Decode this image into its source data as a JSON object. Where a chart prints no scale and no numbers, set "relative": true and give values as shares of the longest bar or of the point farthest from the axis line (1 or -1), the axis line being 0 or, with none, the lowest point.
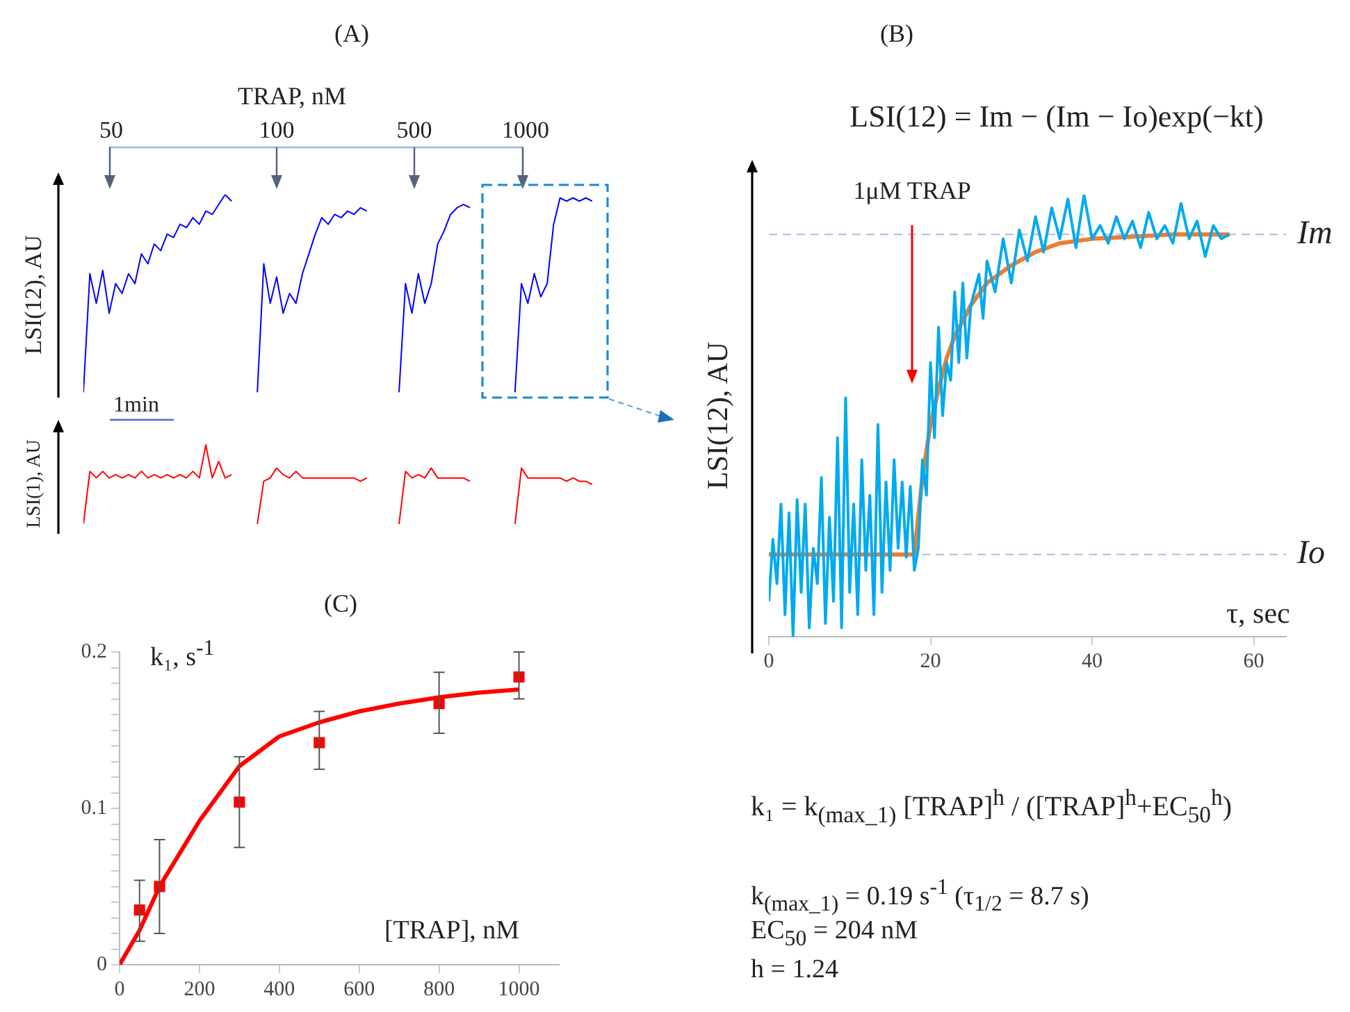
{
  "chart_data": [
    {
      "type": "line",
      "title": "(A)",
      "ylabel": "LSI(12), AU",
      "relative": true,
      "tick_labels": false,
      "marker": "none",
      "annotations": [
        "TRAP, nM",
        "50",
        "100",
        "500",
        "1000",
        "1min",
        "LSI(1), AU"
      ],
      "categories": [
        null,
        null,
        null,
        null,
        null,
        null,
        null,
        null,
        null,
        null,
        null,
        null,
        null,
        null,
        null,
        null,
        null,
        null,
        null,
        null,
        null,
        null,
        null,
        null,
        null,
        null,
        null,
        null,
        null,
        null,
        null,
        null,
        null,
        null,
        null,
        null,
        null,
        null,
        null,
        null,
        null,
        null,
        null,
        null,
        null,
        null,
        null,
        null,
        null,
        null,
        null,
        null,
        null,
        null,
        null,
        null,
        null,
        null,
        null,
        null,
        null,
        null,
        null,
        null,
        null,
        null,
        null,
        null,
        null,
        null,
        null,
        null,
        null,
        null,
        null,
        null,
        null,
        null,
        null,
        null
      ],
      "series": [
        {
          "color": "#0000ff",
          "values": [
            0.4,
            0.76,
            0.67,
            0.77,
            0.64,
            0.73,
            0.7,
            0.76,
            0.73,
            0.82,
            0.79,
            0.85,
            0.83,
            0.88,
            0.87,
            0.91,
            0.9,
            0.93,
            0.91,
            0.95,
            0.94,
            0.97,
            1.0,
            0.98,
            null,
            null,
            null,
            null,
            null,
            null,
            null,
            null,
            null,
            null,
            null,
            null,
            null,
            null,
            null,
            null,
            null,
            null,
            null,
            null,
            null,
            null,
            null,
            null,
            null,
            null,
            null,
            null,
            null,
            null,
            null,
            null,
            null,
            null,
            null,
            null,
            null,
            null,
            null,
            null,
            null,
            null,
            null,
            null,
            null,
            null,
            null,
            null,
            null,
            null,
            null,
            null,
            null,
            null,
            null,
            null
          ]
        },
        {
          "color": "#0000ff",
          "values": [
            null,
            null,
            null,
            null,
            null,
            null,
            null,
            null,
            null,
            null,
            null,
            null,
            null,
            null,
            null,
            null,
            null,
            null,
            null,
            null,
            null,
            null,
            null,
            null,
            null,
            null,
            null,
            0.4,
            0.79,
            0.67,
            0.75,
            0.64,
            0.7,
            0.67,
            0.76,
            0.82,
            0.88,
            0.93,
            0.91,
            0.94,
            0.93,
            0.95,
            0.94,
            0.96,
            0.95,
            null,
            null,
            null,
            null,
            null,
            null,
            null,
            null,
            null,
            null,
            null,
            null,
            null,
            null,
            null,
            null,
            null,
            null,
            null,
            null,
            null,
            null,
            null,
            null,
            null,
            null,
            null,
            null,
            null,
            null,
            null,
            null,
            null,
            null,
            null
          ]
        },
        {
          "color": "#0000ff",
          "values": [
            null,
            null,
            null,
            null,
            null,
            null,
            null,
            null,
            null,
            null,
            null,
            null,
            null,
            null,
            null,
            null,
            null,
            null,
            null,
            null,
            null,
            null,
            null,
            null,
            null,
            null,
            null,
            null,
            null,
            null,
            null,
            null,
            null,
            null,
            null,
            null,
            null,
            null,
            null,
            null,
            null,
            null,
            null,
            null,
            null,
            null,
            null,
            null,
            null,
            0.4,
            0.73,
            0.64,
            0.76,
            0.67,
            0.73,
            0.85,
            0.89,
            0.94,
            0.96,
            0.97,
            0.96,
            null,
            null,
            null,
            null,
            null,
            null,
            null,
            null,
            null,
            null,
            null,
            null,
            null,
            null,
            null,
            null,
            null,
            null,
            null
          ]
        },
        {
          "color": "#0000ff",
          "values": [
            null,
            null,
            null,
            null,
            null,
            null,
            null,
            null,
            null,
            null,
            null,
            null,
            null,
            null,
            null,
            null,
            null,
            null,
            null,
            null,
            null,
            null,
            null,
            null,
            null,
            null,
            null,
            null,
            null,
            null,
            null,
            null,
            null,
            null,
            null,
            null,
            null,
            null,
            null,
            null,
            null,
            null,
            null,
            null,
            null,
            null,
            null,
            null,
            null,
            null,
            null,
            null,
            null,
            null,
            null,
            null,
            null,
            null,
            null,
            null,
            null,
            null,
            null,
            null,
            null,
            null,
            null,
            0.4,
            0.73,
            0.67,
            0.76,
            0.69,
            0.73,
            0.91,
            0.99,
            0.98,
            0.99,
            0.98,
            0.99,
            0.98
          ]
        },
        {
          "color": "#ff0000",
          "values": [
            0,
            0.16,
            0.14,
            0.16,
            0.14,
            0.15,
            0.14,
            0.15,
            0.14,
            0.16,
            0.14,
            0.15,
            0.14,
            0.15,
            0.14,
            0.15,
            0.14,
            0.16,
            0.14,
            0.24,
            0.14,
            0.19,
            0.14,
            0.15,
            null,
            null,
            null,
            null,
            null,
            null,
            null,
            null,
            null,
            null,
            null,
            null,
            null,
            null,
            null,
            null,
            null,
            null,
            null,
            null,
            null,
            null,
            null,
            null,
            null,
            null,
            null,
            null,
            null,
            null,
            null,
            null,
            null,
            null,
            null,
            null,
            null,
            null,
            null,
            null,
            null,
            null,
            null,
            null,
            null,
            null,
            null,
            null,
            null,
            null,
            null,
            null,
            null,
            null,
            null,
            null
          ]
        },
        {
          "color": "#ff0000",
          "values": [
            null,
            null,
            null,
            null,
            null,
            null,
            null,
            null,
            null,
            null,
            null,
            null,
            null,
            null,
            null,
            null,
            null,
            null,
            null,
            null,
            null,
            null,
            null,
            null,
            null,
            null,
            null,
            0,
            0.13,
            0.14,
            0.17,
            0.15,
            0.14,
            0.16,
            0.14,
            0.14,
            0.14,
            0.14,
            0.14,
            0.14,
            0.14,
            0.14,
            0.14,
            0.13,
            0.14,
            null,
            null,
            null,
            null,
            null,
            null,
            null,
            null,
            null,
            null,
            null,
            null,
            null,
            null,
            null,
            null,
            null,
            null,
            null,
            null,
            null,
            null,
            null,
            null,
            null,
            null,
            null,
            null,
            null,
            null,
            null,
            null,
            null,
            null,
            null
          ]
        },
        {
          "color": "#ff0000",
          "values": [
            null,
            null,
            null,
            null,
            null,
            null,
            null,
            null,
            null,
            null,
            null,
            null,
            null,
            null,
            null,
            null,
            null,
            null,
            null,
            null,
            null,
            null,
            null,
            null,
            null,
            null,
            null,
            null,
            null,
            null,
            null,
            null,
            null,
            null,
            null,
            null,
            null,
            null,
            null,
            null,
            null,
            null,
            null,
            null,
            null,
            null,
            null,
            null,
            null,
            0,
            0.16,
            0.14,
            0.15,
            0.14,
            0.17,
            0.14,
            0.14,
            0.14,
            0.14,
            0.14,
            0.13,
            null,
            null,
            null,
            null,
            null,
            null,
            null,
            null,
            null,
            null,
            null,
            null,
            null,
            null,
            null,
            null,
            null,
            null,
            null
          ]
        },
        {
          "color": "#ff0000",
          "values": [
            null,
            null,
            null,
            null,
            null,
            null,
            null,
            null,
            null,
            null,
            null,
            null,
            null,
            null,
            null,
            null,
            null,
            null,
            null,
            null,
            null,
            null,
            null,
            null,
            null,
            null,
            null,
            null,
            null,
            null,
            null,
            null,
            null,
            null,
            null,
            null,
            null,
            null,
            null,
            null,
            null,
            null,
            null,
            null,
            null,
            null,
            null,
            null,
            null,
            null,
            null,
            null,
            null,
            null,
            null,
            null,
            null,
            null,
            null,
            null,
            null,
            null,
            null,
            null,
            null,
            null,
            null,
            0,
            0.17,
            0.14,
            0.14,
            0.14,
            0.14,
            0.14,
            0.14,
            0.13,
            0.14,
            0.13,
            0.13,
            0.12
          ]
        }
      ]
    },
    {
      "type": "line",
      "title": "(B)",
      "subtitle": "LSI(12) = Im − (Im − Io)exp(−kt)",
      "xlabel": "τ, sec",
      "ylabel": "LSI(12), AU",
      "relative": true,
      "tick_labels": "x",
      "marker": "none",
      "xlim": [
        0,
        64
      ],
      "xticks": [
        0,
        20,
        40,
        60
      ],
      "series": [
        {
          "color": "#00aaee",
          "x": [
            0,
            0.5,
            1,
            1.5,
            2,
            2.5,
            3,
            3.5,
            4,
            4.5,
            5,
            5.5,
            6,
            6.5,
            7,
            7.5,
            8,
            8.5,
            9,
            9.5,
            10,
            10.5,
            11,
            11.5,
            12,
            12.5,
            13,
            13.5,
            14,
            14.5,
            15,
            15.5,
            16,
            16.5,
            17,
            17.5,
            18,
            18.5,
            19,
            19.5,
            20,
            20.5,
            21,
            21.5,
            22,
            22.5,
            23,
            23.5,
            24,
            24.5,
            25,
            26,
            26.5,
            27,
            28,
            29,
            30,
            31,
            32,
            33,
            34,
            35,
            36,
            37,
            38,
            39,
            40,
            41,
            42,
            43,
            44,
            45,
            46,
            47,
            48,
            49,
            50,
            51,
            52,
            53,
            54,
            55,
            56,
            57
          ],
          "values": [
            0.08,
            0.22,
            0.12,
            0.3,
            0.05,
            0.28,
            0.0,
            0.31,
            0.1,
            0.3,
            0.02,
            0.2,
            0.12,
            0.36,
            0.03,
            0.27,
            0.08,
            0.45,
            0.02,
            0.54,
            0.1,
            0.3,
            0.05,
            0.4,
            0.15,
            0.32,
            0.05,
            0.48,
            0.1,
            0.35,
            0.15,
            0.4,
            0.2,
            0.35,
            0.18,
            0.34,
            0.15,
            0.2,
            0.4,
            0.32,
            0.62,
            0.45,
            0.7,
            0.5,
            0.62,
            0.58,
            0.78,
            0.62,
            0.8,
            0.63,
            0.75,
            0.82,
            0.72,
            0.85,
            0.78,
            0.9,
            0.8,
            0.92,
            0.85,
            0.95,
            0.87,
            0.97,
            0.9,
            0.99,
            0.88,
            1.0,
            0.9,
            0.93,
            0.89,
            0.95,
            0.9,
            0.94,
            0.88,
            0.96,
            0.9,
            0.93,
            0.89,
            0.98,
            0.9,
            0.94,
            0.86,
            0.93,
            0.9,
            0.91
          ]
        },
        {
          "color": "#ed7d31",
          "x": [
            0,
            18,
            19,
            20,
            21,
            22,
            23,
            25,
            27,
            30,
            33,
            36,
            40,
            45,
            50,
            57
          ],
          "values": [
            0.186,
            0.186,
            0.36,
            0.48,
            0.56,
            0.63,
            0.68,
            0.75,
            0.8,
            0.84,
            0.87,
            0.89,
            0.9,
            0.905,
            0.91,
            0.91
          ]
        }
      ],
      "ref_lines": [
        {
          "axis": "y",
          "value": 0.91,
          "label": "Im",
          "color": "#a9bce8",
          "line_style": "dashed"
        },
        {
          "axis": "y",
          "value": 0.186,
          "label": "Io",
          "color": "#a9bce8",
          "line_style": "dashed"
        }
      ],
      "annotations": [
        "1μM TRAP",
        "k₁ = k$_{(max_1)}$ [TRAP]$^{h}$ / ([TRAP]$^{h}$+EC$_{50}$$^{h}$)",
        "k$_{(max_1)}$ = 0.19 s$^{-1}$ (τ$_{1/2}$ = 8.7 s)",
        "EC$_{50}$ = 204 nM",
        "h = 1.24"
      ]
    },
    {
      "type": "scatter",
      "title": "(C)",
      "xlabel": "[TRAP], nM",
      "ylabel": "k₁, s$^{-1}$",
      "marker": "square",
      "xlim": [
        0,
        1100
      ],
      "xticks": [
        0,
        200,
        400,
        600,
        800,
        1000
      ],
      "ylim": [
        0,
        0.2
      ],
      "yticks": [
        0,
        {
          "value": 0.01,
          "label": null
        },
        {
          "value": 0.02,
          "label": null
        },
        {
          "value": 0.03,
          "label": null
        },
        {
          "value": 0.04,
          "label": null
        },
        {
          "value": 0.05,
          "label": null
        },
        {
          "value": 0.06,
          "label": null
        },
        {
          "value": 0.07,
          "label": null
        },
        {
          "value": 0.08,
          "label": null
        },
        {
          "value": 0.09,
          "label": null
        },
        0.1,
        {
          "value": 0.11,
          "label": null
        },
        {
          "value": 0.12,
          "label": null
        },
        {
          "value": 0.13,
          "label": null
        },
        {
          "value": 0.14,
          "label": null
        },
        {
          "value": 0.15,
          "label": null
        },
        {
          "value": 0.16,
          "label": null
        },
        {
          "value": 0.17,
          "label": null
        },
        {
          "value": 0.18,
          "label": null
        },
        {
          "value": 0.19,
          "label": null
        },
        0.2
      ],
      "series": [
        {
          "color": "#ff0000",
          "x": [
            50,
            100,
            300,
            500,
            800,
            1000
          ],
          "values": [
            0.035,
            0.05,
            0.104,
            0.142,
            0.167,
            0.184
          ],
          "errors": [
            [
              0.015,
              0.054
            ],
            [
              0.02,
              0.08
            ],
            [
              0.075,
              0.133
            ],
            [
              0.125,
              0.162
            ],
            [
              0.148,
              0.187
            ],
            [
              0.17,
              0.2
            ]
          ]
        },
        {
          "type": "line",
          "marker": "none",
          "color": "#ff0000",
          "x": [
            0,
            50,
            100,
            200,
            300,
            400,
            500,
            600,
            700,
            800,
            900,
            1000
          ],
          "values": [
            0,
            0.022,
            0.05,
            0.092,
            0.127,
            0.146,
            0.155,
            0.162,
            0.167,
            0.171,
            0.174,
            0.176
          ]
        }
      ]
    }
  ]
}
